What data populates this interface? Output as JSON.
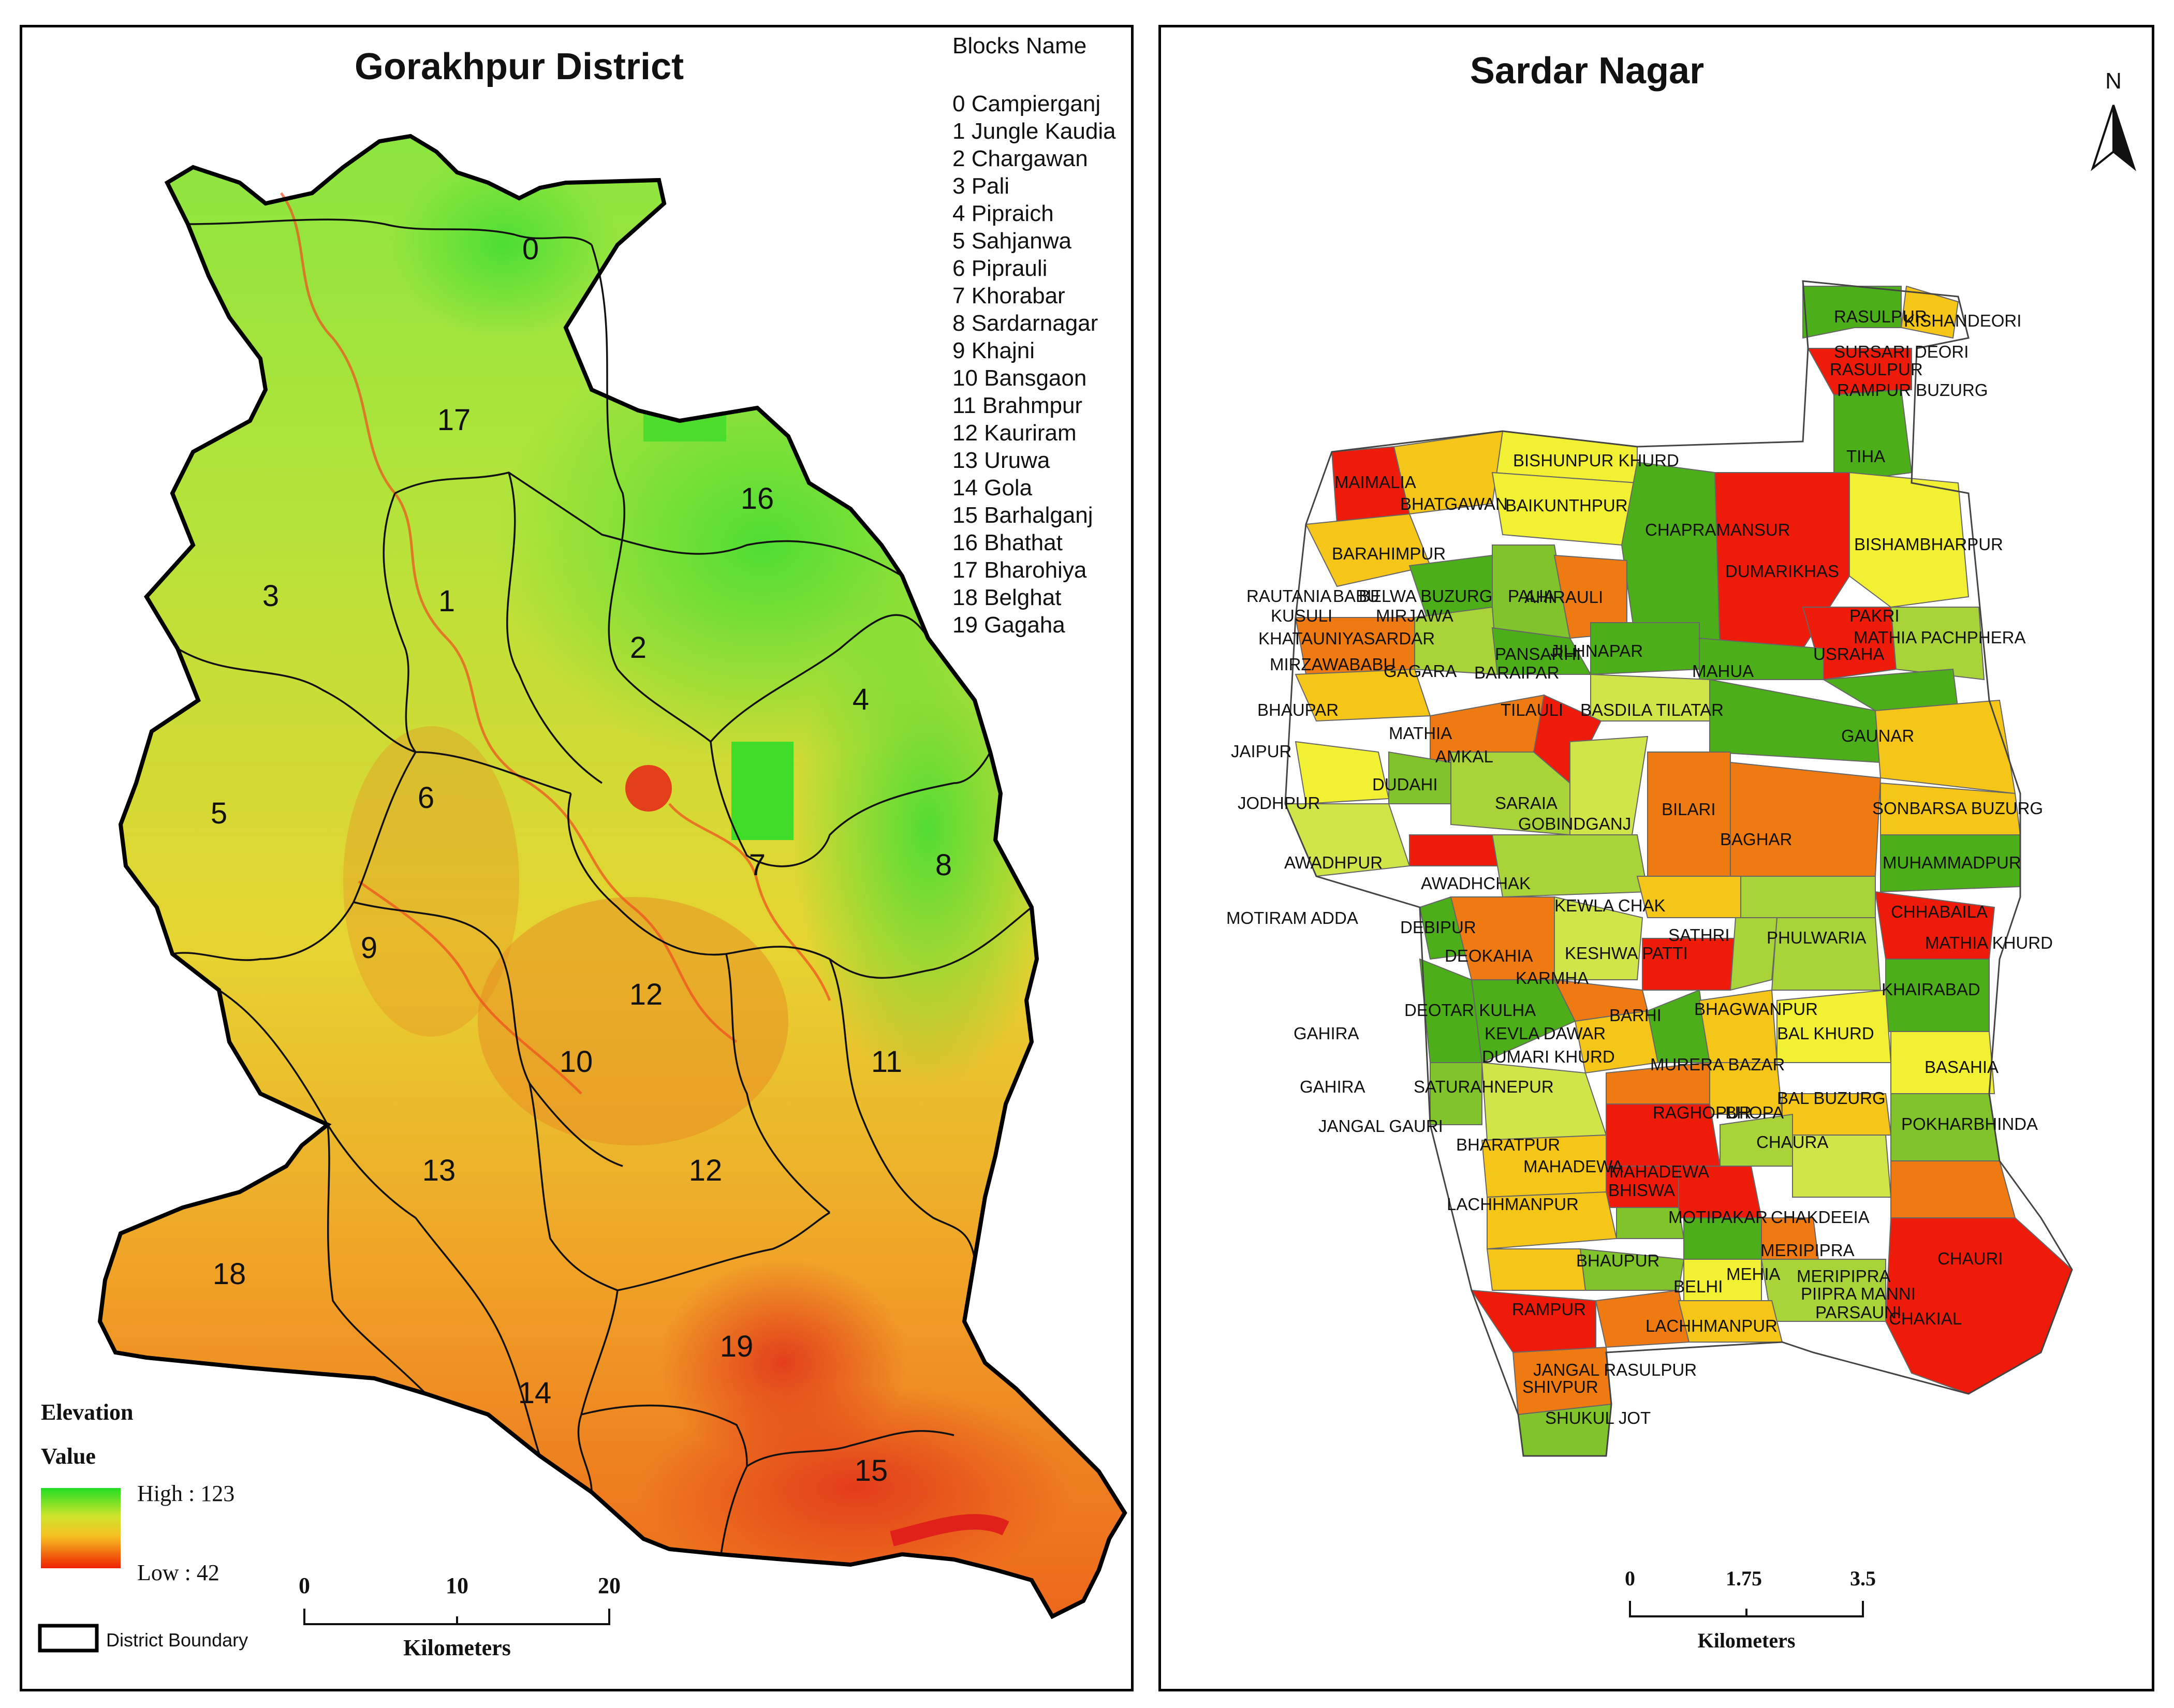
{
  "left_map": {
    "title": "Gorakhpur District",
    "blocks_header": "Blocks Name",
    "blocks": [
      {
        "id": "0",
        "name": "0 Campierganj"
      },
      {
        "id": "1",
        "name": "1 Jungle Kaudia"
      },
      {
        "id": "2",
        "name": "2 Chargawan"
      },
      {
        "id": "3",
        "name": "3 Pali"
      },
      {
        "id": "4",
        "name": "4 Pipraich"
      },
      {
        "id": "5",
        "name": "5 Sahjanwa"
      },
      {
        "id": "6",
        "name": "6 Piprauli"
      },
      {
        "id": "7",
        "name": "7 Khorabar"
      },
      {
        "id": "8",
        "name": "8 Sardarnagar"
      },
      {
        "id": "9",
        "name": "9 Khajni"
      },
      {
        "id": "10",
        "name": "10 Bansgaon"
      },
      {
        "id": "11",
        "name": "11 Brahmpur"
      },
      {
        "id": "12",
        "name": "12 Kauriram"
      },
      {
        "id": "13",
        "name": "13 Uruwa"
      },
      {
        "id": "14",
        "name": "14 Gola"
      },
      {
        "id": "15",
        "name": "15 Barhalganj"
      },
      {
        "id": "16",
        "name": "16 Bhathat"
      },
      {
        "id": "17",
        "name": "17 Bharohiya"
      },
      {
        "id": "18",
        "name": "18 Belghat"
      },
      {
        "id": "19",
        "name": "19 Gagaha"
      }
    ],
    "map_labels": [
      "0",
      "17",
      "16",
      "3",
      "1",
      "2",
      "4",
      "5",
      "6",
      "7",
      "8",
      "9",
      "12",
      "10",
      "11",
      "13",
      "12",
      "18",
      "19",
      "14",
      "15"
    ],
    "legend": {
      "title": "Elevation",
      "subtitle": "Value",
      "high_label": "High : 123",
      "low_label": "Low : 42",
      "high_color": "#22dd22",
      "low_color": "#ee2200",
      "boundary_label": "District Boundary"
    },
    "scale_bar": {
      "ticks": [
        "0",
        "10",
        "20"
      ],
      "unit": "Kilometers"
    }
  },
  "right_map": {
    "title": "Sardar Nagar",
    "north_label": "N",
    "scale_bar": {
      "ticks": [
        "0",
        "1.75",
        "3.5"
      ],
      "unit": "Kilometers"
    },
    "village_labels": [
      "RASULPUR",
      "KISHANDEORI",
      "SURSARI DEORI",
      "RASULPUR",
      "RAMPUR BUZURG",
      "TIHA",
      "BISHUNPUR KHURD",
      "MAIMALIA",
      "BHATGAWAN",
      "BAIKUNTHPUR",
      "CHAPRAMANSUR",
      "DUMARIKHAS",
      "BISHAMBHARPUR",
      "BARAHIMPUR",
      "RAUTANIA",
      "BABU",
      "BELWA BUZURG",
      "PALIA",
      "AHIRAULI",
      "KUSULI",
      "MIRJAWA",
      "PAKRI",
      "MATHIA PACHPHERA",
      "KHATAUNIYASARDAR",
      "PANSARHI",
      "JILHNAPAR",
      "USRAHA",
      "MIRZAWABABU",
      "GAGARA",
      "BARAIPAR",
      "MAHUA",
      "BHAUPAR",
      "TILAULI",
      "BASDILA TILATAR",
      "GAUNAR",
      "MATHIA",
      "JAIPUR",
      "AMKAL",
      "DUDAHI",
      "SARAIA",
      "BILARI",
      "JODHPUR",
      "GOBINDGANJ",
      "SONBARSA BUZURG",
      "BAGHAR",
      "MUHAMMADPUR",
      "AWADHPUR",
      "AWADHCHAK",
      "KEWLA CHAK",
      "CHHABAILA",
      "MOTIRAM ADDA",
      "DEBIPUR",
      "SATHRI",
      "PHULWARIA",
      "MATHIA KHURD",
      "DEOKAHIA",
      "KESHWA PATTI",
      "KARMHA",
      "KHAIRABAD",
      "DEOTAR KULHA",
      "BARHI",
      "BHAGWANPUR",
      "GAHIRA",
      "KEVLA DAWAR",
      "BAL KHURD",
      "DUMARI KHURD",
      "MURERA BAZAR",
      "BASAHIA",
      "GAHIRA",
      "SATURAHNEPUR",
      "BAL BUZURG",
      "RAGHOPUR",
      "BHOPA",
      "JANGAL GAURI",
      "POKHARBHINDA",
      "BHARATPUR",
      "CHAURA",
      "MAHADEWA",
      "MAHADEWA",
      "BHISWA",
      "LACHHMANPUR",
      "MOTIPAKAR",
      "CHAKDEEIA",
      "CHAURI",
      "MERIPIPRA",
      "BHAUPUR",
      "MEHIA",
      "MERIPIPRA",
      "BELHI",
      "PIIPRA MANNI",
      "RAMPUR",
      "PARSAUNI",
      "CHAKIAL",
      "LACHHMANPUR",
      "JANGAL RASULPUR",
      "SHIVPUR",
      "SHUKUL JOT"
    ]
  }
}
